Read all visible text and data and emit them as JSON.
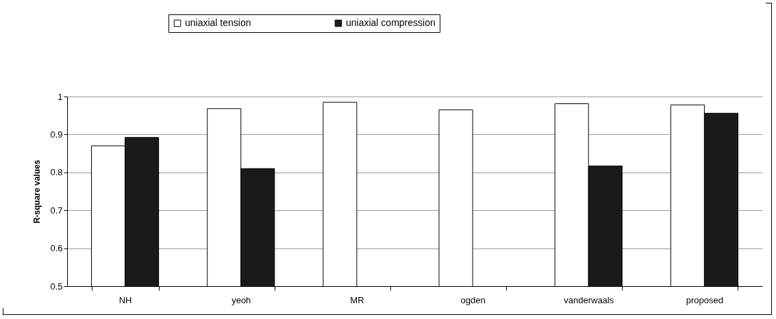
{
  "chart_data": {
    "type": "bar",
    "ylabel": "R-square values",
    "categories": [
      "NH",
      "yeoh",
      "MR",
      "ogden",
      "vanderwaals",
      "proposed"
    ],
    "series": [
      {
        "name": "uniaxial tension",
        "color": "#ffffff",
        "values": [
          0.87,
          0.968,
          0.985,
          0.965,
          0.981,
          0.978
        ]
      },
      {
        "name": "uniaxial compression",
        "color": "#1a1a1a",
        "values": [
          0.892,
          0.81,
          null,
          null,
          0.817,
          0.956
        ]
      }
    ],
    "ylim": [
      0.5,
      1
    ],
    "yticks": [
      0.5,
      0.6,
      0.7,
      0.8,
      0.9,
      {
        "value": 1,
        "label": "1"
      }
    ],
    "grid": "y",
    "legend": "top"
  }
}
